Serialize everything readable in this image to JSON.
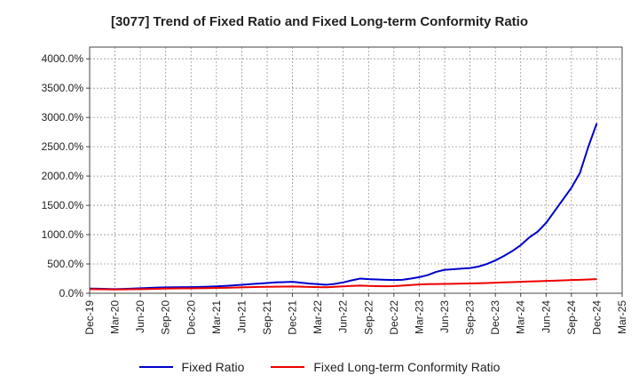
{
  "chart_data": {
    "type": "line",
    "title": "[3077]  Trend of Fixed Ratio and Fixed Long-term Conformity Ratio",
    "xlabel": "",
    "ylabel": "",
    "ylim": [
      0,
      4200
    ],
    "yticks": [
      0,
      500,
      1000,
      1500,
      2000,
      2500,
      3000,
      3500,
      4000
    ],
    "ytick_labels": [
      "0.0%",
      "500.0%",
      "1000.0%",
      "1500.0%",
      "2000.0%",
      "2500.0%",
      "3000.0%",
      "3500.0%",
      "4000.0%"
    ],
    "xtick_labels": [
      "Dec-19",
      "Mar-20",
      "Jun-20",
      "Sep-20",
      "Dec-20",
      "Mar-21",
      "Jun-21",
      "Sep-21",
      "Dec-21",
      "Mar-22",
      "Jun-22",
      "Sep-22",
      "Dec-22",
      "Mar-23",
      "Jun-23",
      "Sep-23",
      "Dec-23",
      "Mar-24",
      "Jun-24",
      "Sep-24",
      "Dec-24",
      "Mar-25"
    ],
    "x": [
      "Dec-19",
      "Jan-20",
      "Feb-20",
      "Mar-20",
      "Apr-20",
      "May-20",
      "Jun-20",
      "Jul-20",
      "Aug-20",
      "Sep-20",
      "Oct-20",
      "Nov-20",
      "Dec-20",
      "Jan-21",
      "Feb-21",
      "Mar-21",
      "Apr-21",
      "May-21",
      "Jun-21",
      "Jul-21",
      "Aug-21",
      "Sep-21",
      "Oct-21",
      "Nov-21",
      "Dec-21",
      "Jan-22",
      "Feb-22",
      "Mar-22",
      "Apr-22",
      "May-22",
      "Jun-22",
      "Jul-22",
      "Aug-22",
      "Sep-22",
      "Oct-22",
      "Nov-22",
      "Dec-22",
      "Jan-23",
      "Feb-23",
      "Mar-23",
      "Apr-23",
      "May-23",
      "Jun-23",
      "Jul-23",
      "Aug-23",
      "Sep-23",
      "Oct-23",
      "Nov-23",
      "Dec-23",
      "Jan-24",
      "Feb-24",
      "Mar-24",
      "Apr-24",
      "May-24",
      "Jun-24",
      "Jul-24",
      "Aug-24",
      "Sep-24",
      "Oct-24",
      "Nov-24",
      "Dec-24"
    ],
    "series": [
      {
        "name": "Fixed Ratio",
        "color": "#0000cc",
        "values": [
          80,
          78,
          74,
          70,
          74,
          80,
          86,
          90,
          96,
          100,
          103,
          104,
          105,
          108,
          112,
          118,
          125,
          135,
          145,
          155,
          165,
          175,
          185,
          190,
          195,
          180,
          165,
          155,
          145,
          160,
          185,
          220,
          250,
          240,
          235,
          230,
          225,
          230,
          250,
          275,
          310,
          365,
          400,
          410,
          420,
          430,
          455,
          500,
          560,
          635,
          720,
          820,
          950,
          1050,
          1200,
          1400,
          1600,
          1800,
          2050,
          2500,
          2900
        ]
      },
      {
        "name": "Fixed Long-term Conformity Ratio",
        "color": "#ee0000",
        "values": [
          70,
          68,
          66,
          65,
          66,
          68,
          70,
          73,
          76,
          80,
          82,
          83,
          84,
          85,
          87,
          90,
          93,
          97,
          101,
          105,
          108,
          110,
          112,
          114,
          116,
          112,
          108,
          105,
          102,
          110,
          118,
          125,
          130,
          126,
          122,
          120,
          122,
          130,
          140,
          150,
          155,
          158,
          160,
          162,
          164,
          167,
          170,
          174,
          180,
          185,
          190,
          195,
          200,
          205,
          210,
          215,
          220,
          225,
          230,
          235,
          240
        ]
      }
    ],
    "grid": true,
    "legend": "bottom"
  }
}
